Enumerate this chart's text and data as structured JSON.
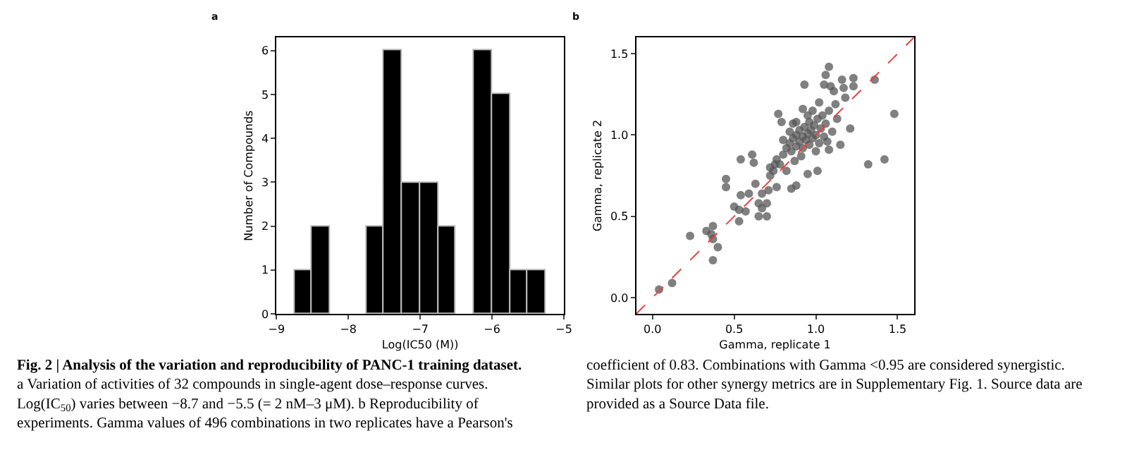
{
  "chart_data": [
    {
      "type": "histogram",
      "xlabel": "Log(IC50 (M))",
      "ylabel": "Number of Compounds",
      "color": "#000000",
      "bins": [
        -8.75,
        -8.5,
        -8.25,
        -8.0,
        -7.75,
        -7.5,
        -7.25,
        -7.0,
        -6.75,
        -6.5,
        -6.25,
        -6.0,
        -5.75,
        -5.5,
        -5.25
      ],
      "values": [
        1,
        2,
        0,
        0,
        2,
        6,
        3,
        3,
        2,
        0,
        6,
        5,
        1,
        1
      ],
      "xlim": [
        -9,
        -5
      ],
      "xticks": [
        {
          "value": -9,
          "label": "−9"
        },
        {
          "value": -8,
          "label": "−8"
        },
        {
          "value": -7,
          "label": "−7"
        },
        {
          "value": -6,
          "label": "−6"
        },
        {
          "value": -5,
          "label": "−5"
        }
      ],
      "ylim": [
        0,
        6.3
      ],
      "yticks": [
        0,
        1,
        2,
        3,
        4,
        5,
        6
      ],
      "annotations": [
        "a",
        "Fig. 2 | Analysis of the variation and reproducibility of PANC-1 training dataset.",
        "a Variation of activities of 32 compounds in single-agent dose–response curves. Log(IC$_{50}$) varies between −8.7 and −5.5 (= 2 nM–3 μM). b Reproducibility of experiments. Gamma values of 496 combinations in two replicates have a Pearson's coefficient of 0.83. Combinations with Gamma <0.95 are considered synergistic. Similar plots for other synergy metrics are in Supplementary Fig. 1. Source data are provided as a Source Data file."
      ]
    },
    {
      "type": "scatter",
      "xlabel": "Gamma, replicate 1",
      "ylabel": "Gamma, replicate 2",
      "xlim": [
        -0.1,
        1.6
      ],
      "xticks": [
        {
          "value": 0,
          "label": "0.0"
        },
        0.5,
        {
          "value": 1,
          "label": "1.0"
        },
        1.5
      ],
      "ylim": [
        -0.1,
        1.6
      ],
      "yticks": [
        {
          "value": 0,
          "label": "0.0"
        },
        0.5,
        {
          "value": 1,
          "label": "1.0"
        },
        1.5
      ],
      "series": [
        {
          "type": "scatter",
          "color": "#555555",
          "marker": "circle",
          "x": [
            0.04,
            0.12,
            0.23,
            0.33,
            0.37,
            0.36,
            0.37,
            0.37,
            0.4,
            0.45,
            0.45,
            0.5,
            0.54,
            0.53,
            0.53,
            0.54,
            0.57,
            0.59,
            0.61,
            0.62,
            0.63,
            0.65,
            0.65,
            0.67,
            0.67,
            0.7,
            0.7,
            0.71,
            0.72,
            0.75,
            0.77,
            0.76,
            0.79,
            0.85,
            0.86,
            0.88,
            0.92,
            0.93,
            0.95,
            1.01,
            1.05,
            1.06,
            1.08,
            1.09,
            1.11,
            1.16,
            1.17,
            1.18,
            1.23,
            1.23,
            1.21,
            1.15,
            1.08,
            1.32,
            1.36,
            1.42,
            1.48,
            0.8,
            0.82,
            0.84,
            0.85,
            0.86,
            0.88,
            0.88,
            0.9,
            0.9,
            0.92,
            0.92,
            0.93,
            0.94,
            0.95,
            0.96,
            0.96,
            0.97,
            0.98,
            0.99,
            1.0,
            1.01,
            1.02,
            1.03,
            1.04,
            1.05,
            1.06,
            1.08,
            1.1,
            1.12,
            0.78,
            0.76,
            0.82,
            0.87,
            0.91,
            0.84,
            0.8,
            0.95,
            1.0,
            1.07,
            1.13,
            0.74,
            0.72,
            0.98,
            1.02,
            0.88
          ],
          "values": [
            0.05,
            0.09,
            0.38,
            0.41,
            0.44,
            0.39,
            0.36,
            0.23,
            0.31,
            0.73,
            0.68,
            0.56,
            0.85,
            0.54,
            0.47,
            0.63,
            0.53,
            0.64,
            0.88,
            0.83,
            0.7,
            0.58,
            0.5,
            0.55,
            0.64,
            0.5,
            0.58,
            0.66,
            0.75,
            0.82,
            1.13,
            0.68,
            1.08,
            0.67,
            1.07,
            0.69,
            1.16,
            1.31,
            0.76,
            0.78,
            1.31,
            1.37,
            1.42,
            1.3,
            1.27,
            1.34,
            1.29,
            1.23,
            1.3,
            1.35,
            1.04,
            0.94,
            0.91,
            0.82,
            1.34,
            0.85,
            1.13,
            0.88,
            0.92,
            0.95,
            0.9,
            0.98,
            0.93,
            1.0,
            0.96,
            1.03,
            0.92,
            0.99,
            1.05,
            0.97,
            1.01,
            0.94,
            1.08,
            1.03,
            0.98,
            1.06,
            1.0,
            1.1,
            0.95,
            1.04,
            1.12,
            0.99,
            1.07,
            1.15,
            1.02,
            1.19,
            0.82,
            0.85,
            0.78,
            0.84,
            0.87,
            1.02,
            0.97,
            1.12,
            0.9,
            0.96,
            1.1,
            0.78,
            0.8,
            1.15,
            1.2,
            1.08
          ]
        },
        {
          "type": "line",
          "color": "#e8413c",
          "line_style": "dashed",
          "marker": "none",
          "x": [
            -0.1,
            1.6
          ],
          "values": [
            -0.1,
            1.6
          ]
        }
      ],
      "annotations": [
        "b"
      ]
    }
  ]
}
